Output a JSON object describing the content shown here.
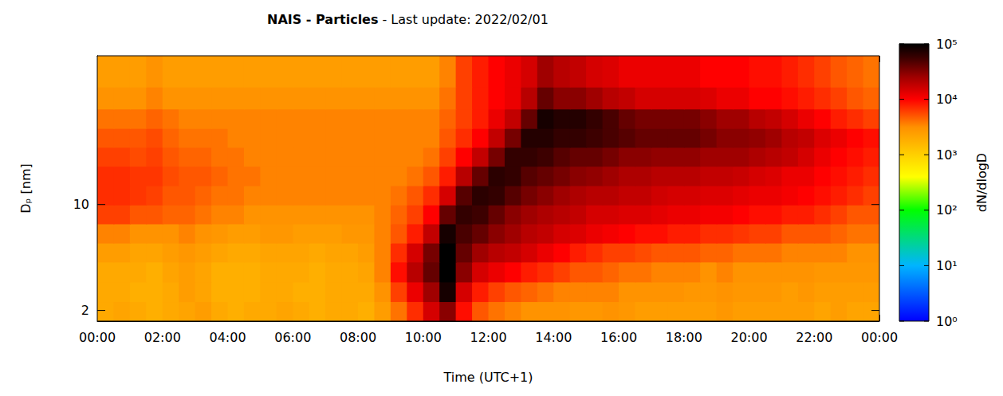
{
  "chart_data": {
    "type": "heatmap",
    "title": "NAIS - Particles",
    "subtitle": "- Last update: 2022/02/01",
    "x_label": "Time (UTC+1)",
    "y_label": "Dₚ [nm]",
    "log": "y",
    "xlim": [
      0,
      24
    ],
    "xticks": [
      {
        "value": 0,
        "label": "00:00"
      },
      {
        "value": 2,
        "label": "02:00"
      },
      {
        "value": 4,
        "label": "04:00"
      },
      {
        "value": 6,
        "label": "06:00"
      },
      {
        "value": 8,
        "label": "08:00"
      },
      {
        "value": 10,
        "label": "10:00"
      },
      {
        "value": 12,
        "label": "12:00"
      },
      {
        "value": 14,
        "label": "14:00"
      },
      {
        "value": 16,
        "label": "16:00"
      },
      {
        "value": 18,
        "label": "18:00"
      },
      {
        "value": 20,
        "label": "20:00"
      },
      {
        "value": 22,
        "label": "22:00"
      },
      {
        "value": 24,
        "label": "00:00"
      }
    ],
    "ylim": [
      1.7,
      96
    ],
    "yticks": [
      2,
      10
    ],
    "x_edges": [
      0,
      0.5,
      1,
      1.5,
      2,
      2.5,
      3,
      3.5,
      4,
      4.5,
      5,
      5.5,
      6,
      6.5,
      7,
      7.5,
      8,
      8.5,
      9,
      9.5,
      10,
      10.5,
      11,
      11.5,
      12,
      12.5,
      13,
      13.5,
      14,
      14.5,
      15,
      15.5,
      16,
      16.5,
      17,
      17.5,
      18,
      18.5,
      19,
      19.5,
      20,
      20.5,
      21,
      21.5,
      22,
      22.5,
      23,
      23.5,
      24
    ],
    "y_edges": [
      1.7,
      2.3,
      3.1,
      4.2,
      5.6,
      7.5,
      10,
      13.4,
      18,
      24,
      32,
      43,
      60,
      96
    ],
    "cells": [
      [
        2000,
        2200,
        2000,
        1800,
        2000,
        2200,
        2500,
        2000,
        1800,
        2000,
        2000,
        2200,
        2000,
        1800,
        2000,
        2000,
        1800,
        2500,
        4000,
        7000,
        15000,
        30000,
        9000,
        5000,
        4000,
        3500,
        3000,
        3000,
        3000,
        2800,
        2800,
        3000,
        2800,
        2500,
        2500,
        2500,
        2500,
        2500,
        2800,
        2500,
        2500,
        2500,
        2500,
        2500,
        2200,
        2500,
        2200,
        2200
      ],
      [
        2000,
        2000,
        1800,
        1800,
        2000,
        2500,
        2200,
        1800,
        1800,
        1800,
        2000,
        2000,
        1800,
        1800,
        2000,
        2000,
        2000,
        3000,
        6000,
        12000,
        25000,
        80000,
        15000,
        8000,
        6000,
        5000,
        4500,
        4000,
        3500,
        3500,
        3500,
        3500,
        3000,
        3000,
        3000,
        3000,
        2800,
        2800,
        3000,
        2800,
        2800,
        2800,
        2500,
        2800,
        2500,
        2500,
        2500,
        2500
      ],
      [
        2000,
        2000,
        2000,
        1800,
        2200,
        2500,
        2200,
        1800,
        1800,
        1800,
        2000,
        2000,
        2000,
        1800,
        2000,
        2000,
        2200,
        3500,
        9000,
        20000,
        40000,
        100000,
        30000,
        15000,
        12000,
        10000,
        8000,
        7000,
        6000,
        5000,
        5000,
        4500,
        4000,
        4000,
        3500,
        3500,
        3500,
        3000,
        3500,
        3000,
        3000,
        3000,
        3000,
        3000,
        2800,
        2800,
        2800,
        2800
      ],
      [
        2500,
        2500,
        2200,
        2200,
        2500,
        2800,
        2500,
        2200,
        2000,
        2000,
        2200,
        2200,
        2200,
        2000,
        2200,
        2200,
        2500,
        3500,
        7000,
        15000,
        35000,
        100000,
        40000,
        25000,
        20000,
        18000,
        15000,
        12000,
        10000,
        8000,
        7000,
        6000,
        6000,
        5500,
        5000,
        5000,
        5000,
        4500,
        4500,
        4000,
        4000,
        4000,
        3500,
        3500,
        3500,
        3500,
        3000,
        3000
      ],
      [
        3500,
        3500,
        3000,
        3000,
        3000,
        3500,
        3000,
        2800,
        2500,
        2500,
        2800,
        2800,
        2500,
        2500,
        2500,
        2800,
        2800,
        3500,
        5000,
        8000,
        18000,
        80000,
        50000,
        40000,
        30000,
        25000,
        20000,
        18000,
        15000,
        14000,
        12000,
        11000,
        10000,
        9000,
        9000,
        8000,
        8000,
        7000,
        7000,
        6500,
        6000,
        6000,
        5000,
        5000,
        5000,
        4500,
        4000,
        4000
      ],
      [
        6000,
        6000,
        5000,
        5000,
        4500,
        4500,
        4000,
        3500,
        3500,
        3000,
        3000,
        3000,
        3000,
        3000,
        3000,
        3000,
        3000,
        3500,
        4500,
        6000,
        10000,
        40000,
        60000,
        55000,
        40000,
        30000,
        25000,
        22000,
        20000,
        18000,
        15000,
        15000,
        14000,
        14000,
        13000,
        12000,
        12000,
        11000,
        11000,
        10000,
        9000,
        9000,
        8000,
        8000,
        7000,
        6000,
        5000,
        5000
      ],
      [
        7000,
        7000,
        6500,
        6000,
        5000,
        5000,
        4500,
        4000,
        4000,
        3500,
        3500,
        3500,
        3500,
        3500,
        3500,
        3500,
        3500,
        3500,
        4000,
        5000,
        7000,
        15000,
        45000,
        65000,
        60000,
        45000,
        35000,
        30000,
        25000,
        22000,
        20000,
        20000,
        18000,
        18000,
        16000,
        15000,
        15000,
        14000,
        14000,
        13000,
        12000,
        12000,
        11000,
        10000,
        9000,
        8000,
        7000,
        6000
      ],
      [
        7000,
        7000,
        6500,
        6500,
        5500,
        5000,
        5000,
        4500,
        4000,
        4000,
        3500,
        3500,
        3500,
        3500,
        3500,
        3500,
        3500,
        3500,
        3500,
        4000,
        5000,
        8000,
        20000,
        40000,
        65000,
        60000,
        45000,
        40000,
        35000,
        30000,
        28000,
        25000,
        22000,
        22000,
        20000,
        20000,
        20000,
        18000,
        18000,
        17000,
        15000,
        14000,
        12000,
        12000,
        10000,
        9000,
        8000,
        7000
      ],
      [
        6000,
        6000,
        5500,
        6000,
        5000,
        4500,
        4500,
        4000,
        4000,
        3500,
        3500,
        3500,
        3500,
        3500,
        3500,
        3500,
        3500,
        3500,
        3500,
        3500,
        4000,
        6000,
        10000,
        18000,
        35000,
        60000,
        60000,
        55000,
        45000,
        40000,
        40000,
        35000,
        30000,
        30000,
        28000,
        28000,
        28000,
        25000,
        25000,
        25000,
        22000,
        20000,
        18000,
        15000,
        12000,
        10000,
        9000,
        8000
      ],
      [
        5000,
        5000,
        5000,
        5500,
        4500,
        4000,
        4000,
        4000,
        3500,
        3500,
        3500,
        3500,
        3500,
        3500,
        3500,
        3500,
        3500,
        3500,
        3500,
        3500,
        3500,
        5000,
        7000,
        10000,
        18000,
        35000,
        70000,
        70000,
        60000,
        60000,
        55000,
        50000,
        45000,
        40000,
        40000,
        40000,
        40000,
        35000,
        30000,
        30000,
        28000,
        25000,
        20000,
        18000,
        14000,
        12000,
        10000,
        9000
      ],
      [
        4000,
        4000,
        4000,
        4500,
        4000,
        3500,
        3500,
        3500,
        3500,
        3500,
        3500,
        3500,
        3500,
        3500,
        3500,
        3500,
        3500,
        3500,
        3500,
        3500,
        3500,
        4500,
        6000,
        8000,
        12000,
        18000,
        40000,
        80000,
        70000,
        70000,
        60000,
        50000,
        40000,
        35000,
        35000,
        35000,
        35000,
        30000,
        25000,
        25000,
        20000,
        18000,
        15000,
        12000,
        10000,
        8000,
        7000,
        6000
      ],
      [
        3000,
        3000,
        3000,
        3500,
        3000,
        3000,
        3000,
        3000,
        3000,
        3000,
        3000,
        3000,
        3000,
        3000,
        3000,
        3000,
        3000,
        3000,
        3000,
        3000,
        3000,
        4000,
        6000,
        8000,
        10000,
        12000,
        20000,
        40000,
        30000,
        30000,
        25000,
        20000,
        18000,
        15000,
        15000,
        15000,
        15000,
        14000,
        12000,
        12000,
        10000,
        10000,
        9000,
        8000,
        7000,
        6000,
        5000,
        4500
      ],
      [
        2500,
        2500,
        2500,
        3000,
        2500,
        2500,
        2500,
        2500,
        2500,
        2500,
        2500,
        2500,
        2500,
        2500,
        2500,
        2500,
        2500,
        2500,
        2500,
        2500,
        2500,
        3500,
        6000,
        8000,
        10000,
        12000,
        15000,
        25000,
        20000,
        18000,
        15000,
        14000,
        12000,
        12000,
        12000,
        12000,
        12000,
        10000,
        10000,
        10000,
        9000,
        9000,
        8000,
        7000,
        6000,
        5000,
        4500,
        4000
      ]
    ],
    "colorbar": {
      "label": "dN/dlogD",
      "range": [
        1,
        100000
      ],
      "ticks": [
        {
          "value": 1,
          "label": "10⁰"
        },
        {
          "value": 10,
          "label": "10¹"
        },
        {
          "value": 100,
          "label": "10²"
        },
        {
          "value": 1000,
          "label": "10³"
        },
        {
          "value": 10000,
          "label": "10⁴"
        },
        {
          "value": 100000,
          "label": "10⁵"
        }
      ]
    }
  }
}
